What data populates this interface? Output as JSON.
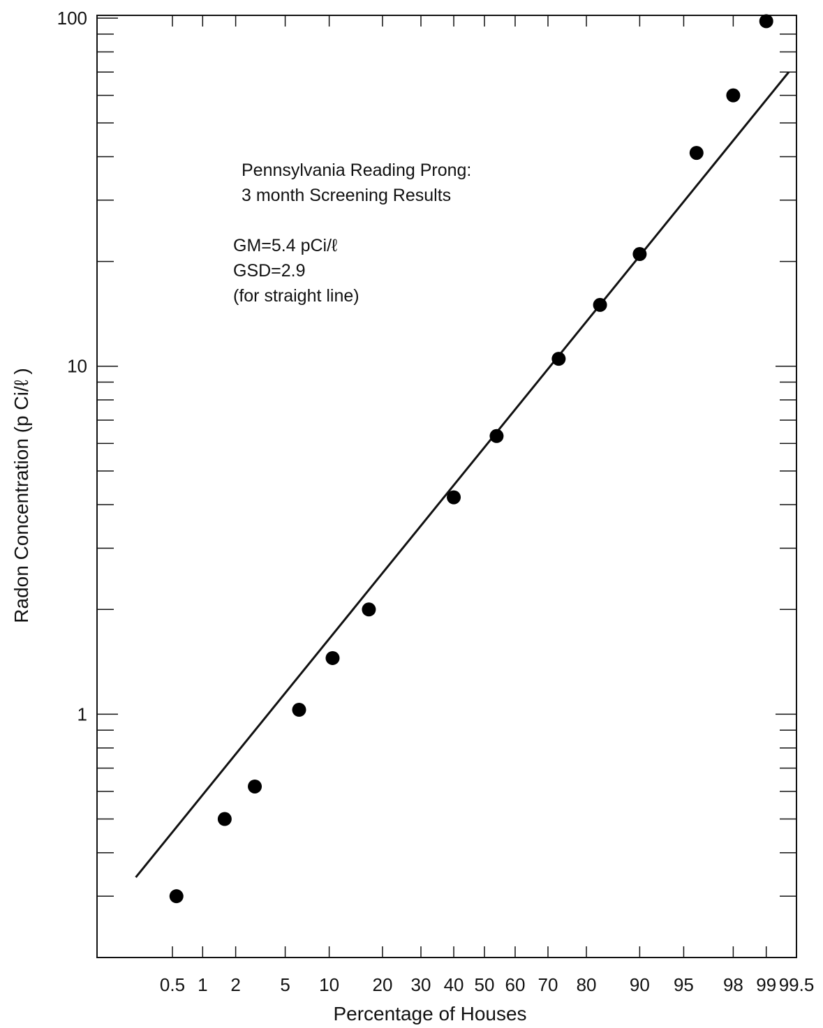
{
  "chart_data": {
    "type": "scatter",
    "title": "",
    "xlabel": "Percentage of Houses",
    "ylabel": "Radon Concentration (p Ci/ℓ )",
    "x_scale": "probability",
    "y_scale": "log",
    "ylim": [
      0.2,
      100
    ],
    "xlim": [
      0.15,
      99.5
    ],
    "x_ticks": [
      {
        "label": "0.5",
        "value": 0.5
      },
      {
        "label": "1",
        "value": 1
      },
      {
        "label": "2",
        "value": 2
      },
      {
        "label": "5",
        "value": 5
      },
      {
        "label": "10",
        "value": 10
      },
      {
        "label": "20",
        "value": 20
      },
      {
        "label": "30",
        "value": 30
      },
      {
        "label": "40",
        "value": 40
      },
      {
        "label": "50",
        "value": 50
      },
      {
        "label": "60",
        "value": 60
      },
      {
        "label": "70",
        "value": 70
      },
      {
        "label": "80",
        "value": 80
      },
      {
        "label": "90",
        "value": 90
      },
      {
        "label": "95",
        "value": 95
      },
      {
        "label": "98",
        "value": 98
      },
      {
        "label": "99",
        "value": 99
      },
      {
        "label": "99.5",
        "value": 99.5
      }
    ],
    "y_ticks": [
      {
        "label": "1",
        "value": 1
      },
      {
        "label": "10",
        "value": 10
      },
      {
        "label": "100",
        "value": 100
      }
    ],
    "series": [
      {
        "x": [
          0.55,
          1.6,
          2.9,
          6.3,
          10.5,
          17,
          40,
          54,
          73,
          83,
          90,
          96,
          98,
          99
        ],
        "y": [
          0.3,
          0.5,
          0.62,
          1.03,
          1.45,
          2.0,
          4.2,
          6.3,
          10.5,
          15,
          21,
          41,
          60,
          98
        ]
      }
    ],
    "fit_line": {
      "x": [
        0.2,
        99.4
      ],
      "y": [
        0.34,
        70
      ]
    },
    "annotations": [
      "Pennsylvania Reading Prong:",
      "3 month Screening Results",
      "GM=5.4 pCi/ℓ",
      "GSD=2.9",
      "(for straight line)"
    ],
    "grid": false,
    "legend": "none"
  }
}
